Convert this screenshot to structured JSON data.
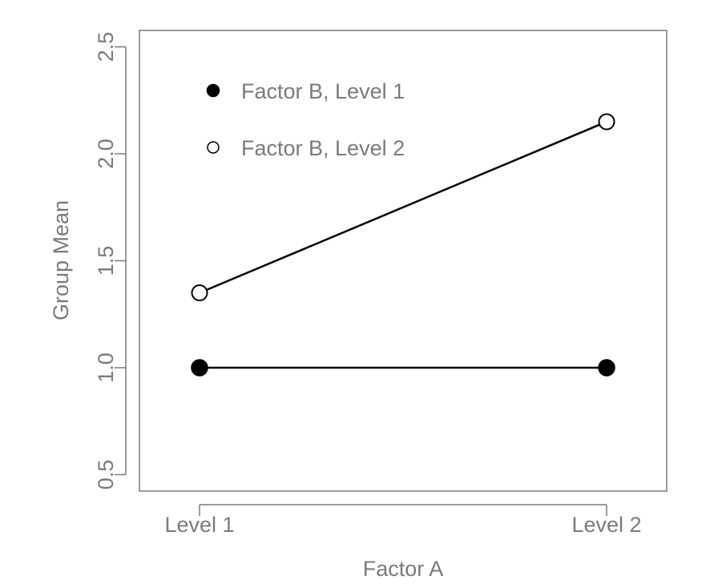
{
  "chart_data": {
    "type": "line",
    "title": "",
    "xlabel": "Factor A",
    "ylabel": "Group Mean",
    "categories": [
      "Level 1",
      "Level 2"
    ],
    "ylim": [
      0.4,
      2.56
    ],
    "yticks": [
      "0.5",
      "1.0",
      "1.5",
      "2.0",
      "2.5"
    ],
    "ytick_values": [
      0.5,
      1.0,
      1.5,
      2.0,
      2.5
    ],
    "grid": false,
    "legend_position": "top-left",
    "series": [
      {
        "name": "Factor B, Level 1",
        "values": [
          1.0,
          1.0
        ],
        "marker": "filled-circle",
        "color": "#000000"
      },
      {
        "name": "Factor B, Level 2",
        "values": [
          1.35,
          2.15
        ],
        "marker": "open-circle",
        "color": "#000000"
      }
    ]
  }
}
